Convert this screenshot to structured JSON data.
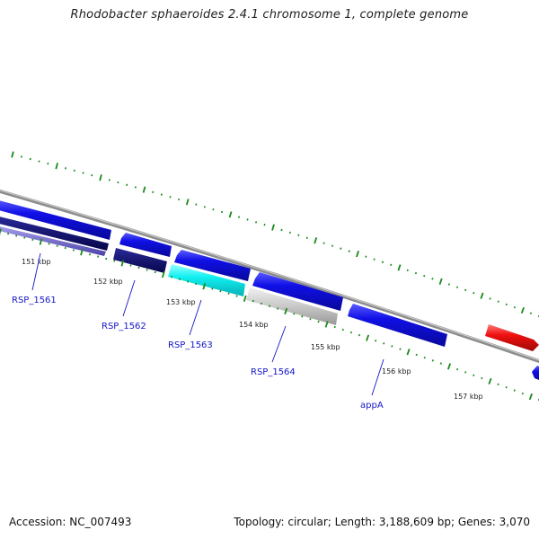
{
  "title": "Rhodobacter sphaeroides 2.4.1 chromosome 1, complete genome",
  "footer": {
    "accession": "Accession: NC_007493",
    "summary": "Topology: circular; Length: 3,188,609 bp; Genes: 3,070"
  },
  "ticks": [
    "151 kbp",
    "152 kbp",
    "153 kbp",
    "154 kbp",
    "155 kbp",
    "156 kbp",
    "157 kbp"
  ],
  "gene_labels": [
    "RSP_1561",
    "RSP_1562",
    "RSP_1563",
    "RSP_1564",
    "appA"
  ],
  "colors": {
    "backbone": "#8c8c8c",
    "tick": "#1a8a1a",
    "gene_blue": "#1010e6",
    "gene_navy": "#0a0a70",
    "gene_cyan": "#10f0f0",
    "gene_gray": "#c8c8c8",
    "gene_red": "#ee1010",
    "gene_slate": "#6a62c8",
    "label": "#1515c8"
  }
}
